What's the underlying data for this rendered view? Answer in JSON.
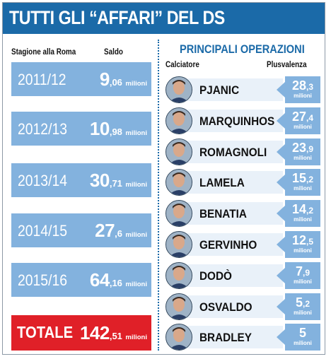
{
  "header": {
    "title": "TUTTI GLI “AFFARI” DEL DS"
  },
  "left": {
    "col_season": "Stagione alla Roma",
    "col_saldo": "Saldo",
    "unit": "milioni",
    "rows": [
      {
        "season": "2011/12",
        "int": "9",
        "dec": ",06"
      },
      {
        "season": "2012/13",
        "int": "10",
        "dec": ",98"
      },
      {
        "season": "2013/14",
        "int": "30",
        "dec": ",71"
      },
      {
        "season": "2014/15",
        "int": "27",
        "dec": ",6"
      },
      {
        "season": "2015/16",
        "int": "64",
        "dec": ",16"
      }
    ],
    "total": {
      "label": "TOTALE",
      "int": "142",
      "dec": ",51"
    }
  },
  "right": {
    "title": "PRINCIPALI OPERAZIONI",
    "col_player": "Calciatore",
    "col_plus": "Plusvalenza",
    "unit": "milioni",
    "rows": [
      {
        "name": "PJANIC",
        "int": "28",
        "dec": ",3"
      },
      {
        "name": "MARQUINHOS",
        "int": "27",
        "dec": ",4"
      },
      {
        "name": "ROMAGNOLI",
        "int": "23",
        "dec": ",9"
      },
      {
        "name": "LAMELA",
        "int": "15",
        "dec": ",2"
      },
      {
        "name": "BENATIA",
        "int": "14",
        "dec": ",2"
      },
      {
        "name": "GERVINHO",
        "int": "12",
        "dec": ",5"
      },
      {
        "name": "DODÒ",
        "int": "7",
        "dec": ",9"
      },
      {
        "name": "OSVALDO",
        "int": "5",
        "dec": ",2"
      },
      {
        "name": "BRADLEY",
        "int": "5",
        "dec": ""
      }
    ]
  },
  "colors": {
    "brand_blue": "#1b6aa8",
    "box_blue": "#83b2de",
    "total_red": "#e02028",
    "label_bg": "#e9f1f9"
  },
  "chart_data": [
    {
      "type": "table",
      "title": "",
      "categories": [
        "2011/12",
        "2012/13",
        "2013/14",
        "2014/15",
        "2015/16"
      ],
      "series": [
        {
          "name": "Saldo",
          "values": [
            9.06,
            10.98,
            30.71,
            27.6,
            64.16
          ]
        }
      ],
      "total": 142.51
    },
    {
      "type": "table",
      "title": "PRINCIPALI OPERAZIONI",
      "categories": [
        "PJANIC",
        "MARQUINHOS",
        "ROMAGNOLI",
        "LAMELA",
        "BENATIA",
        "GERVINHO",
        "DODÒ",
        "OSVALDO",
        "BRADLEY"
      ],
      "series": [
        {
          "name": "Plusvalenza",
          "values": [
            28.3,
            27.4,
            23.9,
            15.2,
            14.2,
            12.5,
            7.9,
            5.2,
            5
          ]
        }
      ]
    }
  ]
}
